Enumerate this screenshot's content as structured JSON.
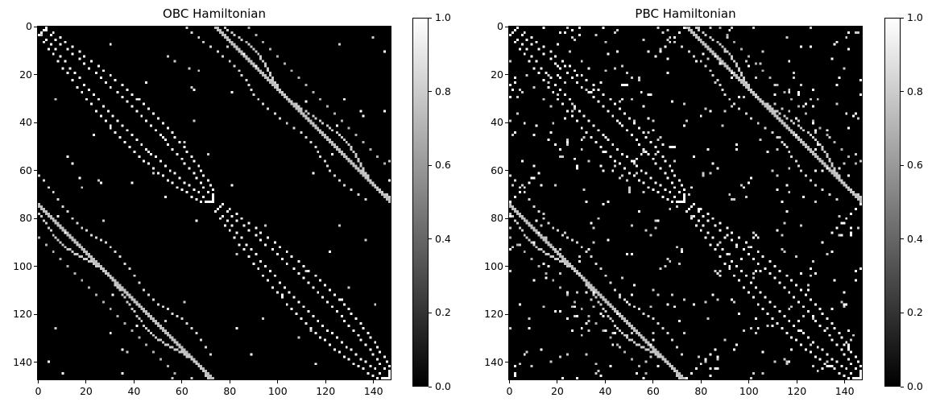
{
  "chart_data": [
    {
      "type": "heatmap",
      "title": "OBC Hamiltonian",
      "colormap": "gray",
      "n": 148,
      "xlim": [
        0,
        147
      ],
      "ylim": [
        147,
        0
      ],
      "xticks": [
        "0",
        "20",
        "40",
        "60",
        "80",
        "100",
        "120",
        "140"
      ],
      "yticks": [
        "0",
        "20",
        "40",
        "60",
        "80",
        "100",
        "120",
        "140"
      ],
      "colorbar": {
        "range": [
          0,
          1
        ],
        "ticks": [
          "0.0",
          "0.2",
          "0.4",
          "0.6",
          "0.8",
          "1.0"
        ]
      },
      "boundary": "open",
      "nonzero_value": 1.0,
      "strong_band_value": 0.75
    },
    {
      "type": "heatmap",
      "title": "PBC Hamiltonian",
      "colormap": "gray",
      "n": 148,
      "xlim": [
        0,
        147
      ],
      "ylim": [
        147,
        0
      ],
      "xticks": [
        "0",
        "20",
        "40",
        "60",
        "80",
        "100",
        "120",
        "140"
      ],
      "yticks": [
        "0",
        "20",
        "40",
        "60",
        "80",
        "100",
        "120",
        "140"
      ],
      "colorbar": {
        "range": [
          0,
          1
        ],
        "ticks": [
          "0.0",
          "0.2",
          "0.4",
          "0.6",
          "0.8",
          "1.0"
        ]
      },
      "boundary": "periodic",
      "nonzero_value": 1.0,
      "strong_band_value": 0.75
    }
  ]
}
